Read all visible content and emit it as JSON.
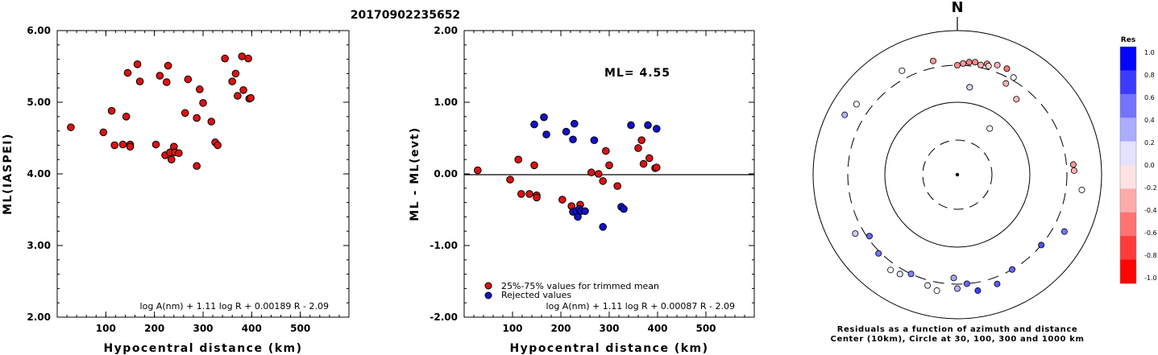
{
  "figure_title": "20170902235652",
  "chart_data": [
    {
      "type": "scatter",
      "ylabel": "ML(IASPEI)",
      "xlabel": "Hypocentral distance (km)",
      "xlim": [
        0,
        600
      ],
      "ylim": [
        2.0,
        6.0
      ],
      "x_ticks": [
        100,
        200,
        300,
        400,
        500
      ],
      "y_ticks": [
        "2.00",
        "3.00",
        "4.00",
        "5.00",
        "6.00"
      ],
      "formula": "log A(nm) + 1.11 log R + 0.00189 R - 2.09",
      "marker_color": "#dd1111",
      "points": [
        {
          "x": 28,
          "y": 4.65
        },
        {
          "x": 95,
          "y": 4.58
        },
        {
          "x": 112,
          "y": 4.88
        },
        {
          "x": 118,
          "y": 4.4
        },
        {
          "x": 135,
          "y": 4.41
        },
        {
          "x": 142,
          "y": 4.8
        },
        {
          "x": 145,
          "y": 5.41
        },
        {
          "x": 150,
          "y": 4.41
        },
        {
          "x": 150,
          "y": 4.38
        },
        {
          "x": 165,
          "y": 5.53
        },
        {
          "x": 170,
          "y": 5.29
        },
        {
          "x": 203,
          "y": 4.41
        },
        {
          "x": 211,
          "y": 5.37
        },
        {
          "x": 222,
          "y": 4.26
        },
        {
          "x": 225,
          "y": 5.28
        },
        {
          "x": 228,
          "y": 5.51
        },
        {
          "x": 232,
          "y": 4.3
        },
        {
          "x": 235,
          "y": 4.2
        },
        {
          "x": 240,
          "y": 4.38
        },
        {
          "x": 242,
          "y": 4.3
        },
        {
          "x": 250,
          "y": 4.29
        },
        {
          "x": 263,
          "y": 4.85
        },
        {
          "x": 269,
          "y": 5.32
        },
        {
          "x": 287,
          "y": 4.11
        },
        {
          "x": 287,
          "y": 4.78
        },
        {
          "x": 293,
          "y": 5.18
        },
        {
          "x": 300,
          "y": 4.99
        },
        {
          "x": 317,
          "y": 4.73
        },
        {
          "x": 325,
          "y": 4.44
        },
        {
          "x": 330,
          "y": 4.4
        },
        {
          "x": 345,
          "y": 5.61
        },
        {
          "x": 360,
          "y": 5.29
        },
        {
          "x": 367,
          "y": 5.4
        },
        {
          "x": 371,
          "y": 5.09
        },
        {
          "x": 380,
          "y": 5.64
        },
        {
          "x": 383,
          "y": 5.17
        },
        {
          "x": 393,
          "y": 5.61
        },
        {
          "x": 395,
          "y": 5.05
        },
        {
          "x": 398,
          "y": 5.06
        }
      ]
    },
    {
      "type": "scatter",
      "ylabel": "ML - ML(evt)",
      "xlabel": "Hypocentral distance (km)",
      "xlim": [
        0,
        600
      ],
      "ylim": [
        -2.0,
        2.0
      ],
      "x_ticks": [
        100,
        200,
        300,
        400,
        500
      ],
      "y_ticks": [
        "-2.00",
        "-1.00",
        "0.00",
        "1.00",
        "2.00"
      ],
      "annotation": "ML=  4.55",
      "formula": "log A(nm) + 1.11 log R + 0.00087 R - 2.09",
      "legend": [
        {
          "label": "25%-75% values for trimmed mean",
          "color": "#dd1111"
        },
        {
          "label": "Rejected values",
          "color": "#1111cc"
        }
      ],
      "legend_placement": "bottom-left",
      "series": [
        {
          "name": "25%-75% values for trimmed mean",
          "color": "#dd1111",
          "points": [
            {
              "x": 28,
              "y": 0.05
            },
            {
              "x": 95,
              "y": -0.08
            },
            {
              "x": 112,
              "y": 0.2
            },
            {
              "x": 118,
              "y": -0.28
            },
            {
              "x": 135,
              "y": -0.28
            },
            {
              "x": 145,
              "y": 0.12
            },
            {
              "x": 150,
              "y": -0.3
            },
            {
              "x": 150,
              "y": -0.33
            },
            {
              "x": 203,
              "y": -0.36
            },
            {
              "x": 222,
              "y": -0.45
            },
            {
              "x": 240,
              "y": -0.43
            },
            {
              "x": 263,
              "y": 0.02
            },
            {
              "x": 278,
              "y": 0.0
            },
            {
              "x": 287,
              "y": -0.1
            },
            {
              "x": 293,
              "y": 0.32
            },
            {
              "x": 300,
              "y": 0.12
            },
            {
              "x": 317,
              "y": -0.17
            },
            {
              "x": 360,
              "y": 0.36
            },
            {
              "x": 367,
              "y": 0.47
            },
            {
              "x": 371,
              "y": 0.14
            },
            {
              "x": 383,
              "y": 0.22
            },
            {
              "x": 395,
              "y": 0.08
            },
            {
              "x": 398,
              "y": 0.09
            }
          ]
        },
        {
          "name": "Rejected values",
          "color": "#1111cc",
          "points": [
            {
              "x": 145,
              "y": 0.69
            },
            {
              "x": 165,
              "y": 0.79
            },
            {
              "x": 170,
              "y": 0.55
            },
            {
              "x": 211,
              "y": 0.59
            },
            {
              "x": 225,
              "y": 0.48
            },
            {
              "x": 228,
              "y": 0.7
            },
            {
              "x": 225,
              "y": -0.53
            },
            {
              "x": 232,
              "y": -0.52
            },
            {
              "x": 235,
              "y": -0.6
            },
            {
              "x": 238,
              "y": -0.49
            },
            {
              "x": 242,
              "y": -0.52
            },
            {
              "x": 250,
              "y": -0.52
            },
            {
              "x": 269,
              "y": 0.47
            },
            {
              "x": 287,
              "y": -0.74
            },
            {
              "x": 325,
              "y": -0.46
            },
            {
              "x": 330,
              "y": -0.49
            },
            {
              "x": 345,
              "y": 0.68
            },
            {
              "x": 380,
              "y": 0.68
            },
            {
              "x": 398,
              "y": 0.63
            }
          ]
        }
      ]
    },
    {
      "type": "polar-scatter",
      "north_label": "N",
      "caption_line1": "Residuals as a function of azimuth and distance",
      "caption_line2": "Center (10km), Circle at 30, 100, 300 and 1000 km",
      "rings_km": [
        30,
        100,
        300,
        1000
      ],
      "colorbar": {
        "title": "Res",
        "range": [
          -1.0,
          1.0
        ],
        "tick_labels": [
          "1.0",
          "0.8",
          "0.6",
          "0.4",
          "0.2",
          "0.0",
          "-0.2",
          "-0.4",
          "-0.6",
          "-0.8",
          "-1.0"
        ],
        "positive_color": "#0000ff",
        "negative_color": "#ff0000"
      },
      "points": [
        {
          "azimuth": 0,
          "distance_km": 300,
          "residual": -0.45
        },
        {
          "azimuth": 3,
          "distance_km": 320,
          "residual": -0.4
        },
        {
          "azimuth": 6,
          "distance_km": 340,
          "residual": -0.5
        },
        {
          "azimuth": 9,
          "distance_km": 350,
          "residual": -0.45
        },
        {
          "azimuth": 12,
          "distance_km": 330,
          "residual": -0.3
        },
        {
          "azimuth": 15,
          "distance_km": 360,
          "residual": -0.4
        },
        {
          "azimuth": 16,
          "distance_km": 340,
          "residual": -0.2
        },
        {
          "azimuth": 20,
          "distance_km": 385,
          "residual": -0.3
        },
        {
          "azimuth": 25,
          "distance_km": 390,
          "residual": -0.55
        },
        {
          "azimuth": 30,
          "distance_km": 330,
          "residual": -0.05
        },
        {
          "azimuth": 28,
          "distance_km": 250,
          "residual": -0.3
        },
        {
          "azimuth": 38,
          "distance_km": 200,
          "residual": -0.25
        },
        {
          "azimuth": 8,
          "distance_km": 160,
          "residual": 0.15
        },
        {
          "azimuth": 35,
          "distance_km": 60,
          "residual": 0.0
        },
        {
          "azimuth": -12,
          "distance_km": 380,
          "residual": -0.4
        },
        {
          "azimuth": -28,
          "distance_km": 400,
          "residual": -0.05
        },
        {
          "azimuth": -55,
          "distance_km": 480,
          "residual": 0.0
        },
        {
          "azimuth": -62,
          "distance_km": 560,
          "residual": 0.3
        },
        {
          "azimuth": 85,
          "distance_km": 380,
          "residual": -0.4
        },
        {
          "azimuth": 88,
          "distance_km": 385,
          "residual": -0.3
        },
        {
          "azimuth": 97,
          "distance_km": 520,
          "residual": 0.0
        },
        {
          "azimuth": 118,
          "distance_km": 450,
          "residual": 0.55
        },
        {
          "azimuth": 130,
          "distance_km": 300,
          "residual": 0.7
        },
        {
          "azimuth": 150,
          "distance_km": 300,
          "residual": 0.6
        },
        {
          "azimuth": 160,
          "distance_km": 380,
          "residual": 0.65
        },
        {
          "azimuth": 170,
          "distance_km": 400,
          "residual": 0.75
        },
        {
          "azimuth": 175,
          "distance_km": 300,
          "residual": 0.6
        },
        {
          "azimuth": 180,
          "distance_km": 350,
          "residual": 0.3
        },
        {
          "azimuth": 182,
          "distance_km": 250,
          "residual": 0.35
        },
        {
          "azimuth": 190,
          "distance_km": 400,
          "residual": 0.0
        },
        {
          "azimuth": 195,
          "distance_km": 360,
          "residual": 0.1
        },
        {
          "azimuth": 205,
          "distance_km": 300,
          "residual": 0.5
        },
        {
          "azimuth": 210,
          "distance_km": 360,
          "residual": 0.1
        },
        {
          "azimuth": 215,
          "distance_km": 380,
          "residual": 0.0
        },
        {
          "azimuth": 225,
          "distance_km": 320,
          "residual": 0.55
        },
        {
          "azimuth": 235,
          "distance_km": 280,
          "residual": 0.6
        },
        {
          "azimuth": 240,
          "distance_km": 400,
          "residual": 0.2
        }
      ]
    }
  ]
}
